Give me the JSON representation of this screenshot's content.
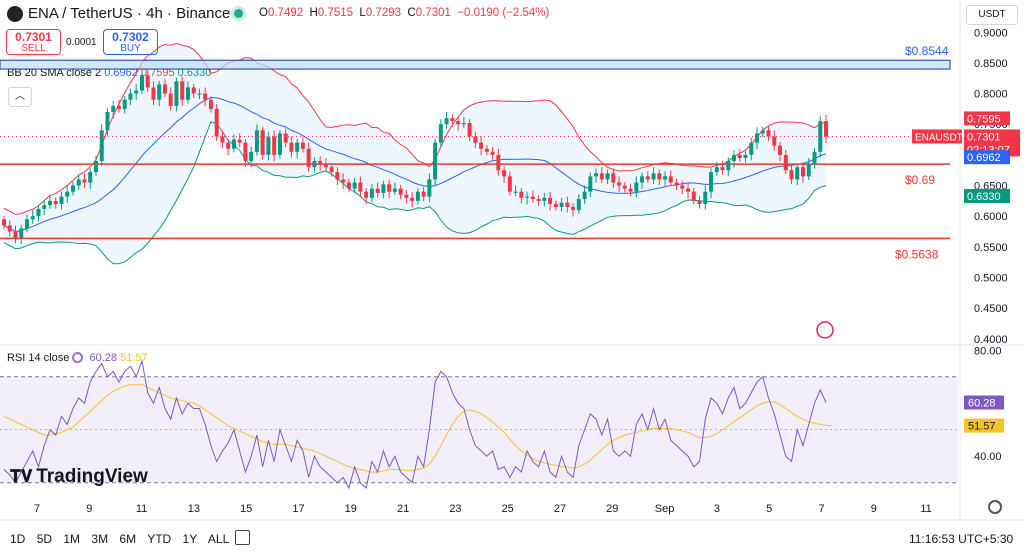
{
  "header": {
    "symbol": "ENA / TetherUS · 4h · Binance",
    "ohlc": [
      {
        "k": "O",
        "v": "0.7492"
      },
      {
        "k": "H",
        "v": "0.7515"
      },
      {
        "k": "L",
        "v": "0.7293"
      },
      {
        "k": "C",
        "v": "0.7301"
      },
      {
        "k": "",
        "v": "−0.0190 (−2.54%)"
      }
    ]
  },
  "trade": {
    "sell_price": "0.7301",
    "sell_label": "SELL",
    "spread": "0.0001",
    "buy_price": "0.7302",
    "buy_label": "BUY"
  },
  "currency_label": "USDT",
  "indicators": {
    "bb": {
      "label": "BB 20 SMA close 2",
      "mid": "0.6962",
      "upper": "0.7595",
      "lower": "0.6330"
    },
    "rsi": {
      "label": "RSI 14 close",
      "rsi": "60.28",
      "ma": "51.57"
    }
  },
  "colors": {
    "up": "#089981",
    "down": "#f23645",
    "bb_mid": "#2962ff",
    "bb_upper": "#f23645",
    "bb_lower": "#089981",
    "rsi": "#7e57c2",
    "rsi_ma": "#f7c32b",
    "level": "#e53935"
  },
  "brand": "TradingView",
  "timeframes": [
    "1D",
    "5D",
    "1M",
    "3M",
    "6M",
    "YTD",
    "1Y",
    "ALL"
  ],
  "clock": "11:16:53 UTC+5:30",
  "chart_data": [
    {
      "type": "candlestick",
      "y_ticks": [
        "0.9000",
        "0.8500",
        "0.8000",
        "0.7500",
        "0.7000",
        "0.6500",
        "0.6000",
        "0.5500",
        "0.5000",
        "0.4500",
        "0.4000"
      ],
      "ylim": [
        0.39,
        0.92
      ],
      "x_ticks": [
        "7",
        "9",
        "11",
        "13",
        "15",
        "17",
        "19",
        "21",
        "23",
        "25",
        "27",
        "29",
        "Sep",
        "3",
        "5",
        "7",
        "9",
        "11"
      ],
      "closes": [
        0.585,
        0.575,
        0.565,
        0.58,
        0.595,
        0.6,
        0.612,
        0.618,
        0.625,
        0.62,
        0.632,
        0.64,
        0.65,
        0.66,
        0.655,
        0.672,
        0.69,
        0.74,
        0.77,
        0.78,
        0.775,
        0.79,
        0.8,
        0.805,
        0.83,
        0.81,
        0.79,
        0.815,
        0.8,
        0.78,
        0.82,
        0.79,
        0.81,
        0.8,
        0.8,
        0.79,
        0.775,
        0.73,
        0.72,
        0.71,
        0.725,
        0.72,
        0.69,
        0.705,
        0.74,
        0.7,
        0.73,
        0.7,
        0.735,
        0.72,
        0.705,
        0.72,
        0.71,
        0.68,
        0.69,
        0.685,
        0.68,
        0.672,
        0.66,
        0.655,
        0.645,
        0.655,
        0.64,
        0.63,
        0.645,
        0.638,
        0.652,
        0.64,
        0.645,
        0.635,
        0.63,
        0.625,
        0.64,
        0.632,
        0.66,
        0.72,
        0.75,
        0.76,
        0.755,
        0.75,
        0.752,
        0.73,
        0.72,
        0.71,
        0.705,
        0.7,
        0.675,
        0.665,
        0.64,
        0.64,
        0.63,
        0.632,
        0.628,
        0.625,
        0.63,
        0.62,
        0.615,
        0.622,
        0.615,
        0.61,
        0.628,
        0.64,
        0.665,
        0.67,
        0.66,
        0.67,
        0.655,
        0.65,
        0.645,
        0.64,
        0.655,
        0.665,
        0.66,
        0.67,
        0.66,
        0.665,
        0.655,
        0.65,
        0.645,
        0.64,
        0.625,
        0.62,
        0.64,
        0.672,
        0.68,
        0.675,
        0.69,
        0.7,
        0.695,
        0.7,
        0.72,
        0.735,
        0.74,
        0.73,
        0.715,
        0.7,
        0.675,
        0.66,
        0.68,
        0.665,
        0.685,
        0.705,
        0.755,
        0.7301
      ],
      "horizontal_levels": [
        {
          "label": "$0.8544",
          "value": 0.8544,
          "type": "zone",
          "zone_low": 0.84
        },
        {
          "label": "$0.69",
          "value": 0.685,
          "type": "line"
        },
        {
          "label": "$0.5638",
          "value": 0.5638,
          "type": "line"
        }
      ],
      "price_labels": [
        {
          "text": "0.7595",
          "value": 0.7595,
          "color": "#f23645"
        },
        {
          "text": "ENAUSDT",
          "value": 0.7301,
          "color": "#f23645"
        },
        {
          "text": "0.7301",
          "value": 0.7301,
          "color": "#f23645"
        },
        {
          "text": "02:13:07",
          "value": 0.7301,
          "color": "#f23645"
        },
        {
          "text": "0.6962",
          "value": 0.6962,
          "color": "#2962ff"
        },
        {
          "text": "0.6330",
          "value": 0.633,
          "color": "#089981"
        }
      ]
    },
    {
      "type": "line",
      "y_ticks": [
        "80.00",
        "40.00"
      ],
      "ylim": [
        28,
        82
      ],
      "band": [
        30,
        70
      ],
      "rsi": [
        35,
        33,
        30,
        34,
        38,
        42,
        36,
        44,
        50,
        48,
        55,
        52,
        58,
        62,
        60,
        68,
        72,
        75,
        70,
        72,
        68,
        72,
        74,
        70,
        76,
        64,
        60,
        66,
        58,
        54,
        62,
        56,
        60,
        58,
        58,
        52,
        44,
        38,
        42,
        45,
        50,
        42,
        34,
        40,
        48,
        36,
        46,
        38,
        50,
        44,
        38,
        46,
        42,
        32,
        40,
        36,
        34,
        32,
        30,
        32,
        28,
        36,
        30,
        28,
        38,
        34,
        42,
        36,
        40,
        34,
        32,
        30,
        40,
        36,
        50,
        68,
        72,
        70,
        64,
        60,
        58,
        50,
        44,
        42,
        40,
        42,
        35,
        36,
        32,
        36,
        34,
        42,
        38,
        36,
        42,
        34,
        32,
        40,
        34,
        32,
        44,
        50,
        56,
        54,
        48,
        54,
        42,
        40,
        42,
        40,
        52,
        56,
        50,
        58,
        50,
        54,
        46,
        44,
        42,
        40,
        36,
        38,
        54,
        62,
        60,
        56,
        62,
        66,
        58,
        60,
        64,
        68,
        70,
        62,
        56,
        48,
        40,
        38,
        50,
        44,
        52,
        60,
        65,
        60.28
      ],
      "rsi_ma": [
        55,
        54,
        53,
        52,
        51,
        50,
        49,
        48,
        48,
        48.5,
        49,
        50,
        51,
        53,
        55,
        57,
        59,
        61,
        63,
        64.5,
        65.5,
        66.5,
        67,
        67,
        67,
        66,
        65,
        64,
        63,
        62,
        61.5,
        61,
        60.5,
        60,
        59,
        57.5,
        56,
        54.5,
        53,
        51.5,
        50.5,
        49.5,
        48.5,
        47.5,
        46.5,
        45.5,
        45,
        44.5,
        44.5,
        44.5,
        44,
        43.5,
        43,
        42.5,
        42,
        41,
        40,
        39,
        38,
        37,
        36,
        35.5,
        35,
        34.5,
        34,
        34,
        34.5,
        35,
        35,
        35,
        34.5,
        34.5,
        35,
        35.5,
        37,
        40,
        44,
        48,
        52,
        55,
        57,
        57.5,
        57,
        56,
        54.5,
        53,
        51,
        49,
        46.5,
        44,
        42,
        40.5,
        39,
        38,
        37.5,
        37,
        36.5,
        36,
        36,
        35.5,
        36,
        37,
        38.5,
        40.5,
        42.5,
        44.5,
        46,
        47,
        48,
        48.5,
        49,
        49.5,
        50,
        50.5,
        50.5,
        50.5,
        50.5,
        50,
        49.5,
        49,
        48,
        47,
        47,
        47.5,
        48.5,
        50,
        51.5,
        53,
        54.5,
        56,
        57.5,
        59,
        60,
        60.5,
        60.5,
        59.5,
        58,
        56.5,
        55,
        54,
        53,
        52.5,
        52,
        51.7,
        51.57
      ]
    }
  ]
}
